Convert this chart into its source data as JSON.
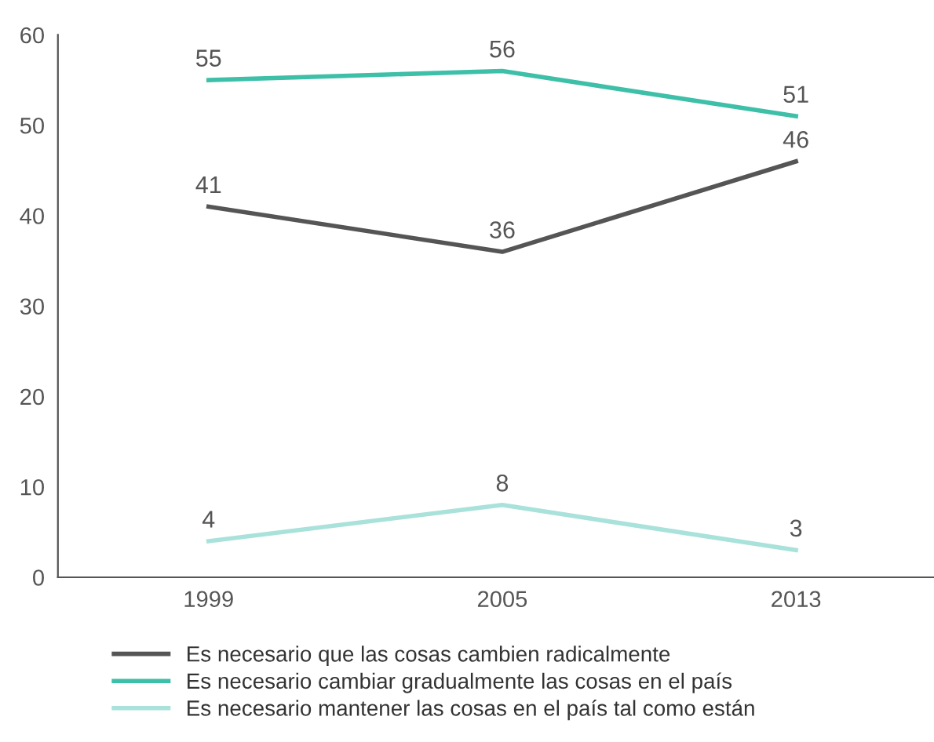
{
  "chart_data": {
    "type": "line",
    "categories": [
      "1999",
      "2005",
      "2013"
    ],
    "series": [
      {
        "name": "Es necesario que las cosas cambien radicalmente",
        "color": "#555555",
        "values": [
          41,
          36,
          46
        ]
      },
      {
        "name": "Es necesario cambiar gradualmente las cosas en el país",
        "color": "#3dbfa8",
        "values": [
          55,
          56,
          51
        ]
      },
      {
        "name": "Es necesario mantener las cosas en el país tal como están",
        "color": "#a9e2da",
        "values": [
          4,
          8,
          3
        ]
      }
    ],
    "ylim": [
      0,
      60
    ],
    "yticks": [
      0,
      10,
      20,
      30,
      40,
      50,
      60
    ],
    "grid": false,
    "legend": "bottom",
    "data_labels": true,
    "marker": "none",
    "line_style": "solid"
  }
}
